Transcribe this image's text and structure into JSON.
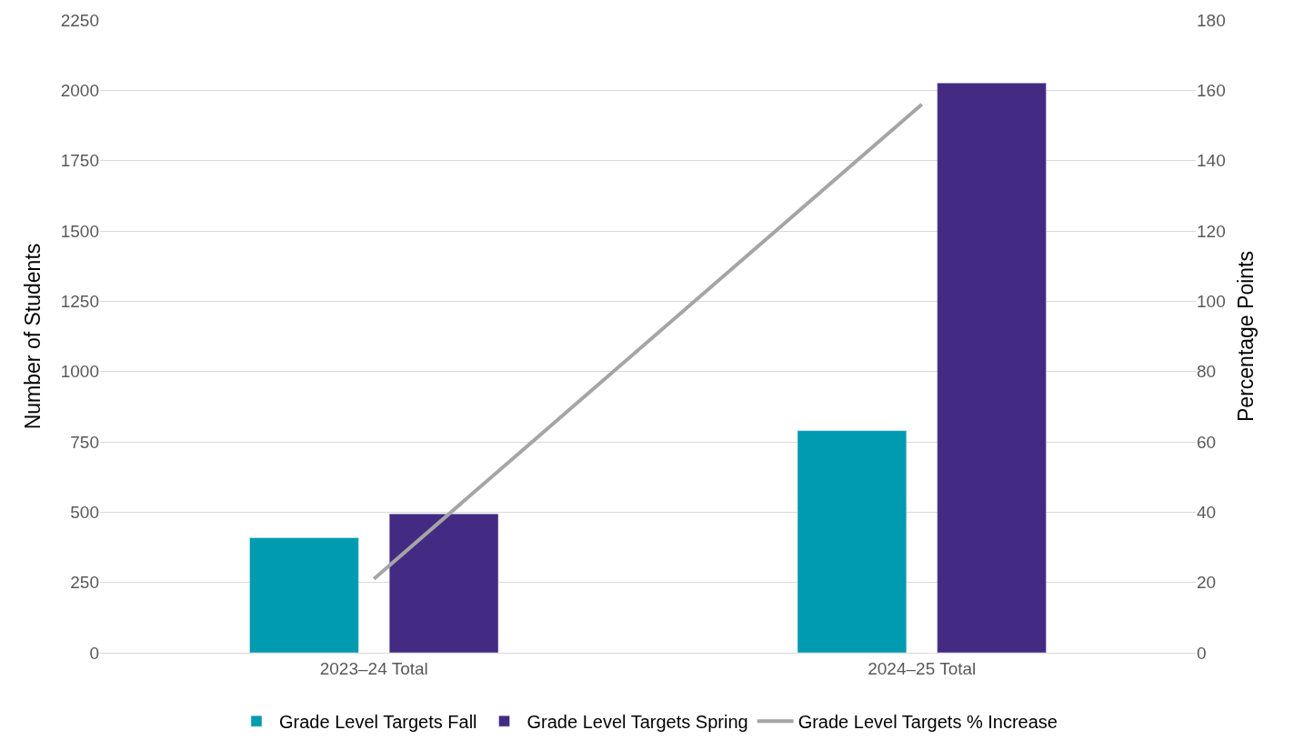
{
  "chart_data": {
    "type": "bar",
    "ylabel": "Number of Students",
    "y2label": "Percentage Points",
    "categories": [
      "2023–24 Total",
      "2024–25 Total"
    ],
    "series": [
      {
        "name": "Grade Level Targets Fall",
        "color": "#009bb0",
        "values": [
          409,
          790
        ]
      },
      {
        "name": "Grade Level Targets Spring",
        "color": "#432a82",
        "values": [
          494,
          2026
        ]
      },
      {
        "name": "Grade Level Targets % Increase",
        "type": "line",
        "axis": "y2",
        "color": "#a5a5a5",
        "values": [
          21,
          156
        ],
        "marker": "none"
      }
    ],
    "ylim": [
      0,
      2250
    ],
    "yticks": [
      0,
      250,
      500,
      750,
      1000,
      1250,
      1500,
      1750,
      2000,
      2250
    ],
    "y2lim": [
      0,
      180
    ],
    "y2ticks": [
      0,
      20,
      40,
      60,
      80,
      100,
      120,
      140,
      160,
      180
    ],
    "grid": "y",
    "legend": "bottom"
  }
}
